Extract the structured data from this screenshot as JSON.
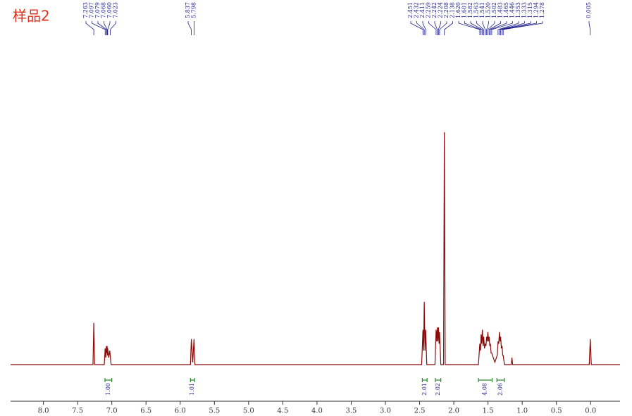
{
  "chart_data": {
    "type": "nmr",
    "title": "样品2",
    "x": [
      8.48,
      7.275,
      7.263,
      7.251,
      7.11,
      7.097,
      7.088,
      7.079,
      7.073,
      7.068,
      7.064,
      7.06,
      7.045,
      7.03,
      7.01,
      5.85,
      5.837,
      5.817,
      5.798,
      5.785,
      2.47,
      2.451,
      2.441,
      2.432,
      2.421,
      2.411,
      2.395,
      2.275,
      2.259,
      2.25,
      2.242,
      2.233,
      2.224,
      2.215,
      2.208,
      2.19,
      2.15,
      2.138,
      2.126,
      1.64,
      1.62,
      1.61,
      1.601,
      1.592,
      1.582,
      1.572,
      1.563,
      1.551,
      1.541,
      1.53,
      1.52,
      1.511,
      1.502,
      1.492,
      1.483,
      1.474,
      1.465,
      1.455,
      1.446,
      1.4,
      1.365,
      1.353,
      1.343,
      1.333,
      1.324,
      1.315,
      1.305,
      1.294,
      1.285,
      1.278,
      1.26,
      1.16,
      1.15,
      1.14,
      0.02,
      0.005,
      -0.01,
      -0.43
    ],
    "values": [
      0,
      0,
      18,
      0,
      0,
      7,
      3,
      8,
      5,
      8,
      4,
      7,
      3,
      6,
      0,
      0,
      11,
      1,
      11,
      0,
      0,
      15,
      6,
      27,
      6,
      15,
      0,
      0,
      15,
      10,
      16,
      10,
      16,
      9,
      14,
      0,
      0,
      100,
      0,
      0,
      9,
      6,
      13,
      9,
      15,
      8,
      12,
      7,
      9,
      8,
      12,
      10,
      14,
      10,
      12,
      8,
      9,
      5,
      5,
      1,
      4,
      10,
      9,
      14,
      10,
      12,
      7,
      8,
      4,
      4,
      0,
      0,
      3,
      0,
      0,
      11,
      0,
      0
    ],
    "color": "#8b0a0a",
    "xlim": [
      8.48,
      -0.43
    ],
    "ylim": [
      0,
      100
    ],
    "xticks": [
      {
        "value": 8,
        "label": "8.0"
      },
      7.5,
      {
        "value": 7,
        "label": "7.0"
      },
      6.5,
      {
        "value": 6,
        "label": "6.0"
      },
      5.5,
      {
        "value": 5,
        "label": "5.0"
      },
      4.5,
      {
        "value": 4,
        "label": "4.0"
      },
      3.5,
      {
        "value": 3,
        "label": "3.0"
      },
      2.5,
      {
        "value": 2,
        "label": "2.0"
      },
      1.5,
      {
        "value": 1,
        "label": "1.0"
      },
      0.5,
      {
        "value": 0,
        "label": "0.0"
      }
    ],
    "peak_labels": [
      7.263,
      7.097,
      7.079,
      7.068,
      {
        "value": 7.06,
        "label": "7.060"
      },
      7.023,
      5.837,
      5.798,
      2.451,
      2.432,
      2.411,
      2.259,
      2.242,
      2.224,
      2.208,
      2.138,
      {
        "value": 1.62,
        "label": "1.620"
      },
      1.601,
      1.582,
      1.563,
      1.541,
      {
        "value": 1.52,
        "label": "1.520"
      },
      1.502,
      1.483,
      1.465,
      1.446,
      1.353,
      1.333,
      1.315,
      1.294,
      1.278,
      0.005
    ],
    "integrals": [
      {
        "range": [
          7.1,
          7.0
        ],
        "value": 1,
        "label": "1.00"
      },
      {
        "range": [
          5.85,
          5.79
        ],
        "value": 1.01,
        "label": "1.01"
      },
      {
        "range": [
          2.46,
          2.39
        ],
        "value": 2.01,
        "label": "2.01"
      },
      {
        "range": [
          2.27,
          2.19
        ],
        "value": 2.02,
        "label": "2.02"
      },
      {
        "range": [
          1.64,
          1.44
        ],
        "value": 4.08,
        "label": "4.08"
      },
      {
        "range": [
          1.37,
          1.26
        ],
        "value": 2.06,
        "label": "2.06"
      }
    ]
  }
}
